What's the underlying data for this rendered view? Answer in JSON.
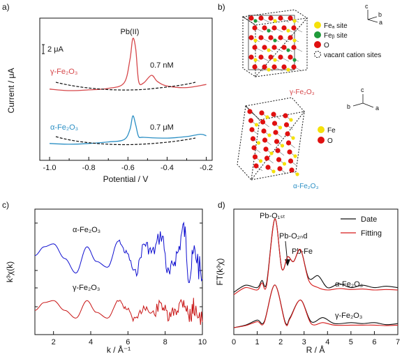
{
  "panel_labels": [
    "a)",
    "b)",
    "c)",
    "d)"
  ],
  "colors": {
    "red": "#d6474a",
    "blue": "#2b8fc4",
    "dark_red": "#c81414",
    "dark_blue": "#1010d0",
    "black": "#111111"
  },
  "panel_a": {
    "ylabel": "Current / μA",
    "xlabel": "Potential / V",
    "scale_bar": "2 μA",
    "peak_label": "Pb(II)",
    "xticks": [
      "-1.0",
      "-0.8",
      "-0.6",
      "-0.4",
      "-0.2"
    ],
    "top_label": "γ-Fe₂O₃",
    "top_conc": "0.7 nM",
    "bottom_label": "α-Fe₂O₃",
    "bottom_conc": "0.7 μM"
  },
  "panel_b": {
    "axis_a": "a",
    "axis_b": "b",
    "axis_c": "c",
    "legend1": [
      "Feₐ site",
      "Feᵦ site",
      "O",
      "vacant cation sites"
    ],
    "legend2": [
      "Fe",
      "O"
    ],
    "struct1_label": "γ-Fe₂O₃",
    "struct2_label": "α-Fe₂O₃"
  },
  "panel_c": {
    "ylabel": "k³χ(k)",
    "xlabel": "k / Å⁻¹",
    "xticks": [
      "2",
      "4",
      "6",
      "8",
      "10"
    ],
    "label_alpha": "α-Fe₂O₃",
    "label_gamma": "γ-Fe₂O₃"
  },
  "panel_d": {
    "ylabel": "FT(k³χ)",
    "xlabel": "R / Å",
    "xticks": [
      "0",
      "1",
      "2",
      "3",
      "4",
      "5",
      "6",
      "7"
    ],
    "ann1": "Pb-O₁ₛₜ",
    "ann2": "Pb-O₂ₙd",
    "ann3": "Pb-Fe",
    "legend_data": "Date",
    "legend_fit": "Fitting",
    "label_alpha": "α-Fe₂O₃",
    "label_gamma": "γ-Fe₂O₃"
  },
  "chart_data": [
    {
      "type": "line",
      "title": "",
      "xlabel": "Potential / V",
      "ylabel": "Current / μA",
      "xlim": [
        -1.05,
        -0.17
      ],
      "series": [
        {
          "name": "γ-Fe₂O₃",
          "x": [
            -1.0,
            -0.9,
            -0.8,
            -0.7,
            -0.62,
            -0.59,
            -0.575,
            -0.56,
            -0.545,
            -0.52,
            -0.48,
            -0.45,
            -0.4,
            -0.3,
            -0.2
          ],
          "y": [
            8.9,
            8.8,
            8.85,
            8.95,
            9.3,
            10.8,
            12.2,
            11.5,
            9.4,
            9.3,
            9.8,
            9.4,
            9.1,
            9.0,
            9.2
          ]
        },
        {
          "name": "α-Fe₂O₃",
          "x": [
            -1.0,
            -0.9,
            -0.8,
            -0.7,
            -0.62,
            -0.59,
            -0.575,
            -0.56,
            -0.545,
            -0.52,
            -0.4,
            -0.3,
            -0.23,
            -0.2
          ],
          "y": [
            2.3,
            2.25,
            2.3,
            2.4,
            2.55,
            3.2,
            4.1,
            3.5,
            2.75,
            2.7,
            2.65,
            2.75,
            2.9,
            2.8
          ]
        }
      ]
    },
    {
      "type": "line",
      "title": "",
      "xlabel": "k / Å⁻¹",
      "ylabel": "k³χ(k)",
      "xlim": [
        1,
        10
      ],
      "series": [
        {
          "name": "α-Fe₂O₃",
          "x": [
            1.0,
            1.5,
            2.0,
            2.6,
            3.2,
            3.8,
            4.3,
            4.9,
            5.5,
            5.9,
            6.4,
            6.9,
            7.3,
            7.8,
            8.2,
            8.6,
            9.0,
            9.3,
            9.6,
            10.0
          ],
          "y": [
            0.2,
            0.5,
            0.6,
            0.1,
            -0.4,
            0.5,
            0.0,
            -0.2,
            0.7,
            0.3,
            -0.4,
            0.6,
            0.3,
            0.9,
            -0.5,
            0.2,
            1.1,
            -0.4,
            0.3,
            -0.6
          ]
        },
        {
          "name": "γ-Fe₂O₃",
          "x": [
            1.0,
            1.5,
            2.0,
            2.6,
            3.2,
            3.8,
            4.3,
            4.9,
            5.5,
            5.9,
            6.4,
            6.9,
            7.3,
            7.8,
            8.2,
            8.6,
            9.0,
            9.3,
            9.6,
            10.0
          ],
          "y": [
            0.1,
            0.5,
            0.6,
            0.1,
            -0.3,
            0.6,
            0.0,
            -0.3,
            0.6,
            0.2,
            -0.4,
            0.3,
            -0.1,
            0.4,
            -0.3,
            0.2,
            0.6,
            -0.2,
            0.3,
            -0.5
          ]
        }
      ]
    },
    {
      "type": "line",
      "title": "",
      "xlabel": "R / Å",
      "ylabel": "FT(k³χ)",
      "xlim": [
        0,
        7
      ],
      "series": [
        {
          "name": "α-Fe₂O₃ Date",
          "x": [
            0,
            0.5,
            1.0,
            1.2,
            1.4,
            1.75,
            2.05,
            2.3,
            2.55,
            2.85,
            3.2,
            3.6,
            4.0,
            4.5,
            5.0,
            5.5,
            6.0,
            6.5,
            7.0
          ],
          "y": [
            0.2,
            0.35,
            0.3,
            0.45,
            0.4,
            1.75,
            0.7,
            0.95,
            0.85,
            1.1,
            0.5,
            0.55,
            0.3,
            0.38,
            0.3,
            0.35,
            0.3,
            0.33,
            0.3
          ]
        },
        {
          "name": "α-Fe₂O₃ Fitting",
          "x": [
            0,
            0.5,
            1.0,
            1.2,
            1.4,
            1.75,
            2.05,
            2.3,
            2.55,
            2.85,
            3.2,
            3.6,
            4.0,
            4.5,
            5.0,
            5.5,
            6.0,
            6.5,
            7.0
          ],
          "y": [
            0.15,
            0.3,
            0.25,
            0.4,
            0.35,
            1.75,
            0.7,
            0.95,
            0.85,
            1.1,
            0.45,
            0.3,
            0.25,
            0.28,
            0.26,
            0.27,
            0.25,
            0.26,
            0.25
          ]
        },
        {
          "name": "γ-Fe₂O₃ Date",
          "x": [
            0,
            0.5,
            1.0,
            1.3,
            1.75,
            2.2,
            2.4,
            2.85,
            3.3,
            3.8,
            4.3,
            5.0,
            5.5,
            6.0,
            6.5,
            7.0
          ],
          "y": [
            0.0,
            0.05,
            0.15,
            0.12,
            0.85,
            0.1,
            0.2,
            0.55,
            0.12,
            0.2,
            0.08,
            0.1,
            0.08,
            0.1,
            0.06,
            0.08
          ]
        },
        {
          "name": "γ-Fe₂O₃ Fitting",
          "x": [
            0,
            0.5,
            1.0,
            1.3,
            1.75,
            2.2,
            2.4,
            2.85,
            3.3,
            3.8,
            4.3,
            5.0,
            5.5,
            6.0,
            6.5,
            7.0
          ],
          "y": [
            0.0,
            0.04,
            0.12,
            0.1,
            0.85,
            0.08,
            0.18,
            0.55,
            0.08,
            0.1,
            0.05,
            0.05,
            0.05,
            0.05,
            0.04,
            0.05
          ]
        }
      ]
    }
  ]
}
